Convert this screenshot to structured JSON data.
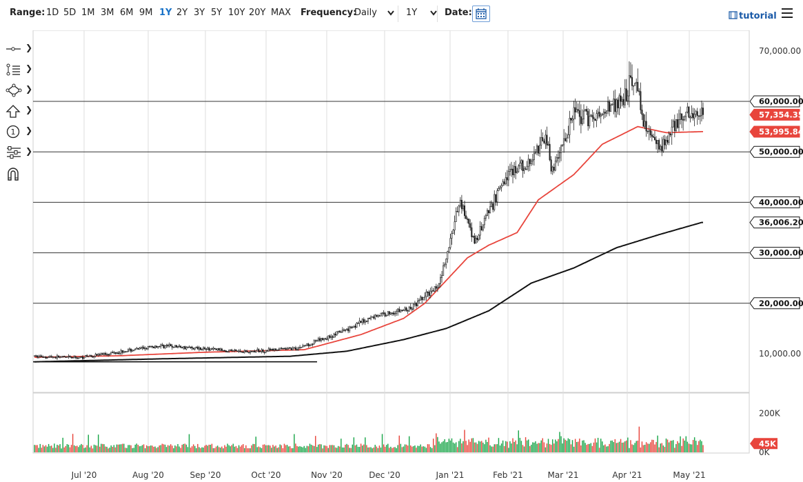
{
  "toolbar": {
    "range_label": "Range:",
    "ranges": [
      "1D",
      "5D",
      "1M",
      "3M",
      "6M",
      "9M",
      "1Y",
      "2Y",
      "3Y",
      "5Y",
      "10Y",
      "20Y",
      "MAX"
    ],
    "active_range": "1Y",
    "frequency_label": "Frequency:",
    "frequency_value": "Daily",
    "period_value": "1Y",
    "date_label": "Date:",
    "tutorial_label": "tutorial"
  },
  "tools": [
    "crosshair-tool",
    "fibonacci-tool",
    "shape-tool",
    "arrow-tool",
    "annotation-tool",
    "indicator-tool",
    "magnet-tool"
  ],
  "chart_data": {
    "type": "candlestick",
    "title": "",
    "x_ticks": [
      "Jul '20",
      "Aug '20",
      "Sep '20",
      "Oct '20",
      "Nov '20",
      "Dec '20",
      "Jan '21",
      "Feb '21",
      "Mar '21",
      "Apr '21",
      "May '21"
    ],
    "y_ticks": [
      "70,000.00",
      "60,000.00",
      "50,000.00",
      "40,000.00",
      "30,000.00",
      "20,000.00",
      "10,000.00"
    ],
    "y_tick_values": [
      70000,
      60000,
      50000,
      40000,
      30000,
      20000,
      10000
    ],
    "volume_ticks": [
      "200K",
      "0K"
    ],
    "volume_tick_values": [
      200000,
      0
    ],
    "horizontal_lines": [
      60000,
      50000,
      40000,
      30000,
      20000
    ],
    "price_labels": [
      {
        "text": "60,000.00",
        "value": 60000,
        "color": "#ffffff"
      },
      {
        "text": "57,354.35",
        "value": 57354.35,
        "color": "#e8453c"
      },
      {
        "text": "53,995.84",
        "value": 53995.84,
        "color": "#e8453c"
      },
      {
        "text": "50,000.00",
        "value": 50000,
        "color": "#ffffff"
      },
      {
        "text": "40,000.00",
        "value": 40000,
        "color": "#ffffff"
      },
      {
        "text": "36,006.20",
        "value": 36006.2,
        "color": "#ffffff"
      },
      {
        "text": "30,000.00",
        "value": 30000,
        "color": "#ffffff"
      },
      {
        "text": "20,000.00",
        "value": 20000,
        "color": "#ffffff"
      }
    ],
    "volume_label": {
      "text": "45K",
      "value": 45000
    },
    "price_anchors": [
      [
        0,
        9500
      ],
      [
        30,
        9200
      ],
      [
        90,
        11600
      ],
      [
        150,
        10400
      ],
      [
        185,
        11100
      ],
      [
        210,
        13600
      ],
      [
        240,
        17500
      ],
      [
        265,
        18900
      ],
      [
        285,
        23800
      ],
      [
        290,
        28900
      ],
      [
        300,
        40500
      ],
      [
        305,
        36000
      ],
      [
        310,
        32000
      ],
      [
        320,
        38000
      ],
      [
        335,
        46500
      ],
      [
        345,
        47000
      ],
      [
        350,
        48500
      ],
      [
        360,
        53000
      ],
      [
        365,
        46000
      ],
      [
        380,
        57500
      ],
      [
        395,
        56500
      ],
      [
        405,
        58800
      ],
      [
        415,
        60800
      ],
      [
        420,
        63500
      ],
      [
        425,
        63000
      ],
      [
        430,
        55000
      ],
      [
        440,
        50000
      ],
      [
        450,
        55000
      ],
      [
        460,
        58000
      ],
      [
        470,
        57354
      ]
    ],
    "ema50_anchors": [
      [
        0,
        9300
      ],
      [
        60,
        9600
      ],
      [
        120,
        10300
      ],
      [
        190,
        10800
      ],
      [
        230,
        13800
      ],
      [
        260,
        17000
      ],
      [
        275,
        20000
      ],
      [
        290,
        24500
      ],
      [
        305,
        29000
      ],
      [
        320,
        31500
      ],
      [
        340,
        34000
      ],
      [
        355,
        40500
      ],
      [
        380,
        45500
      ],
      [
        400,
        51500
      ],
      [
        425,
        55000
      ],
      [
        445,
        53800
      ],
      [
        470,
        54000
      ]
    ],
    "sma200_anchors": [
      [
        0,
        8400
      ],
      [
        90,
        9000
      ],
      [
        180,
        9500
      ],
      [
        220,
        10500
      ],
      [
        260,
        12800
      ],
      [
        290,
        15000
      ],
      [
        320,
        18500
      ],
      [
        350,
        24000
      ],
      [
        380,
        27000
      ],
      [
        410,
        31000
      ],
      [
        440,
        33600
      ],
      [
        470,
        36006
      ]
    ],
    "trend_line": {
      "start_value": 8400,
      "end_value": 8400
    },
    "colors": {
      "up": "#1aa64a",
      "down": "#e8453c",
      "ema50": "#e8453c",
      "sma200": "#111111",
      "grid": "#dedede",
      "hline": "#333333"
    }
  }
}
